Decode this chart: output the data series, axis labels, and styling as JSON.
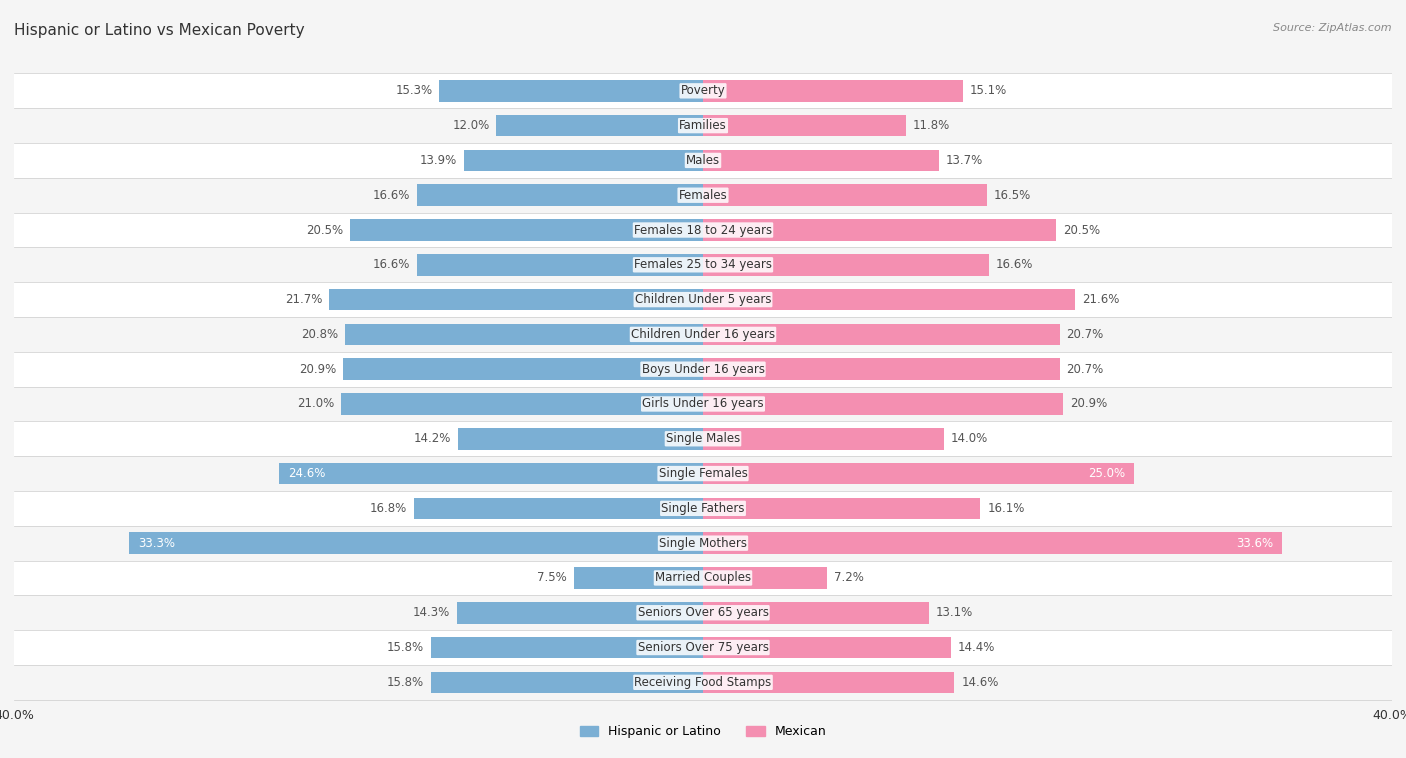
{
  "title": "Hispanic or Latino vs Mexican Poverty",
  "source": "Source: ZipAtlas.com",
  "categories": [
    "Poverty",
    "Families",
    "Males",
    "Females",
    "Females 18 to 24 years",
    "Females 25 to 34 years",
    "Children Under 5 years",
    "Children Under 16 years",
    "Boys Under 16 years",
    "Girls Under 16 years",
    "Single Males",
    "Single Females",
    "Single Fathers",
    "Single Mothers",
    "Married Couples",
    "Seniors Over 65 years",
    "Seniors Over 75 years",
    "Receiving Food Stamps"
  ],
  "hispanic_values": [
    15.3,
    12.0,
    13.9,
    16.6,
    20.5,
    16.6,
    21.7,
    20.8,
    20.9,
    21.0,
    14.2,
    24.6,
    16.8,
    33.3,
    7.5,
    14.3,
    15.8,
    15.8
  ],
  "mexican_values": [
    15.1,
    11.8,
    13.7,
    16.5,
    20.5,
    16.6,
    21.6,
    20.7,
    20.7,
    20.9,
    14.0,
    25.0,
    16.1,
    33.6,
    7.2,
    13.1,
    14.4,
    14.6
  ],
  "hispanic_color": "#7bafd4",
  "mexican_color": "#f48fb1",
  "hispanic_label": "Hispanic or Latino",
  "mexican_label": "Mexican",
  "xlim": 40.0,
  "row_bg_odd": "#f5f5f5",
  "row_bg_even": "#ffffff",
  "title_fontsize": 11,
  "label_fontsize": 8.5,
  "value_fontsize": 8.5,
  "source_fontsize": 8
}
